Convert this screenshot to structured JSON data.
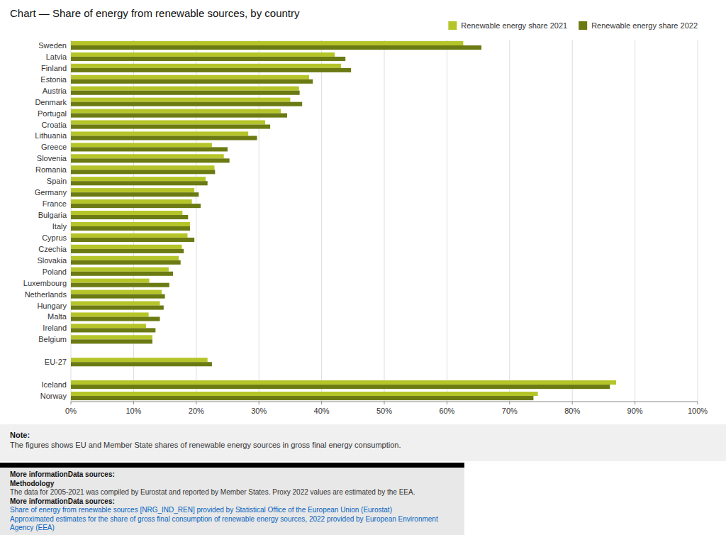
{
  "chart_data": {
    "type": "bar",
    "orientation": "horizontal",
    "title": "Chart — Share of energy from renewable sources, by country",
    "categories": [
      "Sweden",
      "Latvia",
      "Finland",
      "Estonia",
      "Austria",
      "Denmark",
      "Portugal",
      "Croatia",
      "Lithuania",
      "Greece",
      "Slovenia",
      "Romania",
      "Spain",
      "Germany",
      "France",
      "Bulgaria",
      "Italy",
      "Cyprus",
      "Czechia",
      "Slovakia",
      "Poland",
      "Luxembourg",
      "Netherlands",
      "Hungary",
      "Malta",
      "Ireland",
      "Belgium",
      null,
      "EU-27",
      null,
      "Iceland",
      "Norway"
    ],
    "series": [
      {
        "name": "Renewable energy share 2021",
        "color": "#b5c529",
        "values": [
          62.6,
          42.1,
          43.1,
          38.0,
          36.4,
          35.0,
          33.5,
          31.0,
          28.3,
          22.5,
          24.4,
          22.9,
          21.5,
          19.7,
          19.3,
          17.8,
          19.0,
          18.6,
          17.7,
          17.2,
          15.6,
          12.5,
          14.5,
          14.2,
          12.4,
          12.0,
          13.0,
          0,
          21.8,
          0,
          87.0,
          74.5
        ]
      },
      {
        "name": "Renewable energy share 2022",
        "color": "#6b7a12",
        "values": [
          65.5,
          43.8,
          44.7,
          38.6,
          36.5,
          36.9,
          34.5,
          31.8,
          29.7,
          25.0,
          25.3,
          23.0,
          21.8,
          20.4,
          20.7,
          18.7,
          19.0,
          19.7,
          18.0,
          17.5,
          16.3,
          15.7,
          15.0,
          14.8,
          14.2,
          13.5,
          13.0,
          0,
          22.5,
          0,
          86.0,
          73.8
        ]
      }
    ],
    "xlim": [
      0,
      100
    ],
    "xticks": [
      {
        "value": 0,
        "label": "0%"
      },
      {
        "value": 10,
        "label": "10%"
      },
      {
        "value": 20,
        "label": "20%"
      },
      {
        "value": 30,
        "label": "30%"
      },
      {
        "value": 40,
        "label": "40%"
      },
      {
        "value": 50,
        "label": "50%"
      },
      {
        "value": 60,
        "label": "60%"
      },
      {
        "value": 70,
        "label": "70%"
      },
      {
        "value": 80,
        "label": "80%"
      },
      {
        "value": 90,
        "label": "90%"
      },
      {
        "value": 100,
        "label": "100%"
      }
    ],
    "grid": true,
    "legend": "upper right",
    "annotations": [
      "Note:",
      "The figures shows EU and Member State shares of renewable energy sources in gross final energy consumption.",
      "More informationData sources:",
      "Methodology",
      "The data for 2005-2021 was compiled by Eurostat and reported by Member States. Proxy 2022 values are estimated by the EEA.",
      "More informationData sources:",
      "Share of energy from renewable sources [NRG_IND_REN] provided by Statistical Office of the European Union (Eurostat)",
      "Approximated estimates for the share of gross final consumption of renewable energy sources, 2022 provided by European Environment\nAgency (EEA)"
    ]
  }
}
